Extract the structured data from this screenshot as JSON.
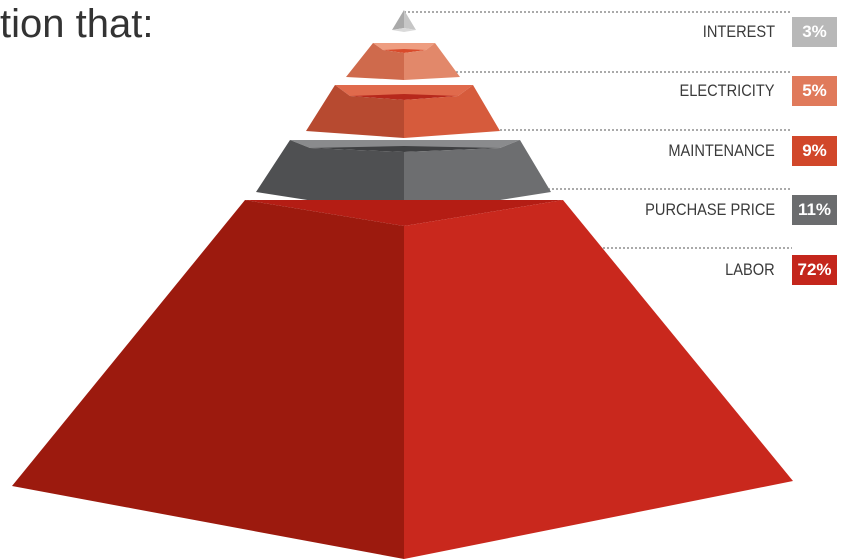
{
  "heading": {
    "text": "tion that:"
  },
  "chart_data": {
    "type": "pyramid",
    "title": "",
    "categories": [
      "INTEREST",
      "ELECTRICITY",
      "MAINTENANCE",
      "PURCHASE PRICE",
      "LABOR"
    ],
    "values": [
      3,
      5,
      9,
      11,
      72
    ],
    "value_labels": [
      "3%",
      "5%",
      "9%",
      "11%",
      "72%"
    ],
    "unit": "%",
    "colors": [
      "#b8b8b8",
      "#e07a5b",
      "#d1472a",
      "#6b6c6e",
      "#c4261c"
    ]
  },
  "legend": [
    {
      "label": "INTEREST",
      "value": "3%",
      "color": "#b8b8b8"
    },
    {
      "label": "ELECTRICITY",
      "value": "5%",
      "color": "#e07a5b"
    },
    {
      "label": "MAINTENANCE",
      "value": "9%",
      "color": "#d1472a"
    },
    {
      "label": "PURCHASE PRICE",
      "value": "11%",
      "color": "#6b6c6e"
    },
    {
      "label": "LABOR",
      "value": "72%",
      "color": "#c4261c"
    }
  ]
}
